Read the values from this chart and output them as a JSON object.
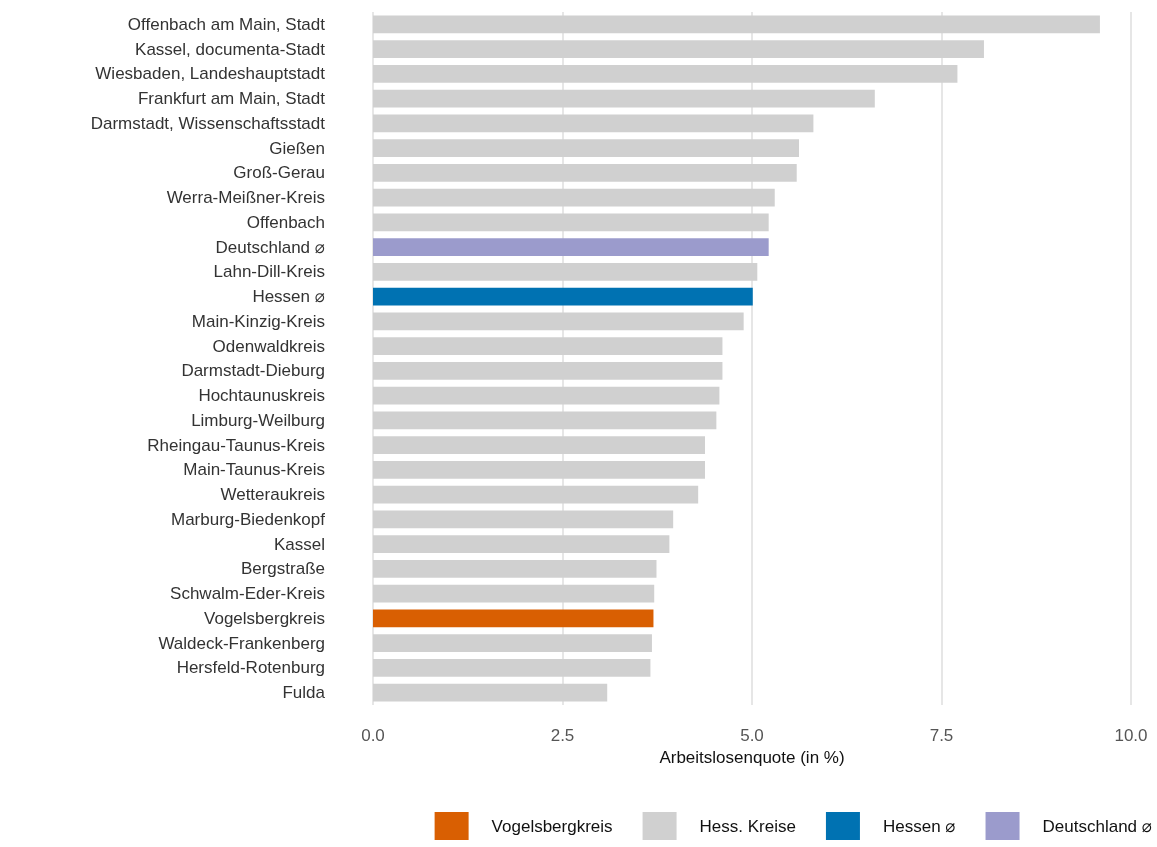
{
  "chart_data": {
    "type": "bar",
    "orientation": "horizontal",
    "stacked": true,
    "xlabel": "Arbeitslosenquote (in %)",
    "categories": [
      "Offenbach am Main, Stadt",
      "Kassel, documenta-Stadt",
      "Wiesbaden, Landeshauptstadt",
      "Frankfurt am Main, Stadt",
      "Darmstadt, Wissenschaftsstadt",
      "Gießen",
      "Groß-Gerau",
      "Werra-Meißner-Kreis",
      "Offenbach",
      "Deutschland ⌀",
      "Lahn-Dill-Kreis",
      "Hessen ⌀",
      "Main-Kinzig-Kreis",
      "Odenwaldkreis",
      "Darmstadt-Dieburg",
      "Hochtaunuskreis",
      "Limburg-Weilburg",
      "Rheingau-Taunus-Kreis",
      "Main-Taunus-Kreis",
      "Wetteraukreis",
      "Marburg-Biedenkopf",
      "Kassel",
      "Bergstraße",
      "Schwalm-Eder-Kreis",
      "Vogelsbergkreis",
      "Waldeck-Frankenberg",
      "Hersfeld-Rotenburg",
      "Fulda"
    ],
    "series": [
      {
        "name": "Vogelsbergkreis",
        "color": "#d95f02",
        "values": [
          null,
          null,
          null,
          null,
          null,
          null,
          null,
          null,
          null,
          null,
          null,
          null,
          null,
          null,
          null,
          null,
          null,
          null,
          null,
          null,
          null,
          null,
          null,
          null,
          3.7,
          null,
          null,
          null
        ]
      },
      {
        "name": "Hess. Kreise",
        "color": "#d0d0d0",
        "values": [
          9.59,
          8.06,
          7.71,
          6.62,
          5.81,
          5.62,
          5.59,
          5.3,
          5.22,
          null,
          5.07,
          null,
          4.89,
          4.61,
          4.61,
          4.57,
          4.53,
          4.38,
          4.38,
          4.29,
          3.96,
          3.91,
          3.74,
          3.71,
          null,
          3.68,
          3.66,
          3.09
        ]
      },
      {
        "name": "Hessen ⌀",
        "color": "#0072b2",
        "values": [
          null,
          null,
          null,
          null,
          null,
          null,
          null,
          null,
          null,
          null,
          null,
          5.01,
          null,
          null,
          null,
          null,
          null,
          null,
          null,
          null,
          null,
          null,
          null,
          null,
          null,
          null,
          null,
          null
        ]
      },
      {
        "name": "Deutschland ⌀",
        "color": "#9b9bcc",
        "values": [
          null,
          null,
          null,
          null,
          null,
          null,
          null,
          null,
          null,
          5.22,
          null,
          null,
          null,
          null,
          null,
          null,
          null,
          null,
          null,
          null,
          null,
          null,
          null,
          null,
          null,
          null,
          null,
          null
        ]
      }
    ],
    "xlim": [
      0,
      10
    ],
    "xticks": [
      {
        "value": 0,
        "label": "0.0"
      },
      {
        "value": 2.5,
        "label": "2.5"
      },
      {
        "value": 5,
        "label": "5.0"
      },
      {
        "value": 7.5,
        "label": "7.5"
      },
      {
        "value": 10,
        "label": "10.0"
      }
    ],
    "grid": "x",
    "legend": "bottom"
  }
}
